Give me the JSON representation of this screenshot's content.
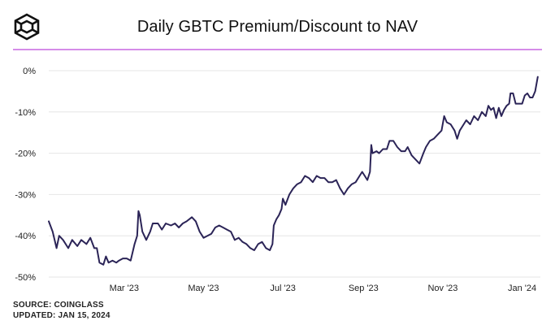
{
  "header": {
    "logo_icon": "cube-logo-icon",
    "title": "Daily GBTC Premium/Discount to NAV"
  },
  "footer": {
    "source": "SOURCE: COINGLASS",
    "updated": "UPDATED: JAN 15, 2024"
  },
  "colors": {
    "line": "#2b2457",
    "accent_rule": "#d58ce8",
    "grid": "#e6e6e6",
    "text": "#111111"
  },
  "chart_data": {
    "type": "line",
    "title": "Daily GBTC Premium/Discount to NAV",
    "xlabel": "",
    "ylabel": "",
    "y_unit": "%",
    "ylim": [
      -50,
      0
    ],
    "yticks": [
      0,
      -10,
      -20,
      -30,
      -40,
      -50
    ],
    "ytick_labels": [
      "0%",
      "-10%",
      "-20%",
      "-30%",
      "-40%",
      "-50%"
    ],
    "xlim": [
      "2023-01-02",
      "2024-01-15"
    ],
    "xticks": [
      "2023-03-01",
      "2023-05-01",
      "2023-07-01",
      "2023-09-01",
      "2023-11-01",
      "2024-01-01"
    ],
    "xtick_labels": [
      "Mar '23",
      "May '23",
      "Jul '23",
      "Sep '23",
      "Nov '23",
      "Jan '24"
    ],
    "grid": true,
    "legend": "none",
    "series": [
      {
        "points": [
          [
            "2023-01-02",
            -36.5
          ],
          [
            "2023-01-05",
            -39
          ],
          [
            "2023-01-08",
            -43
          ],
          [
            "2023-01-10",
            -40
          ],
          [
            "2023-01-13",
            -41
          ],
          [
            "2023-01-17",
            -43
          ],
          [
            "2023-01-20",
            -41
          ],
          [
            "2023-01-24",
            -42.5
          ],
          [
            "2023-01-27",
            -41
          ],
          [
            "2023-01-31",
            -42
          ],
          [
            "2023-02-03",
            -40.5
          ],
          [
            "2023-02-06",
            -43
          ],
          [
            "2023-02-08",
            -43
          ],
          [
            "2023-02-10",
            -46.5
          ],
          [
            "2023-02-13",
            -47
          ],
          [
            "2023-02-15",
            -45
          ],
          [
            "2023-02-17",
            -46.5
          ],
          [
            "2023-02-20",
            -46
          ],
          [
            "2023-02-23",
            -46.5
          ],
          [
            "2023-02-25",
            -46
          ],
          [
            "2023-02-28",
            -45.5
          ],
          [
            "2023-03-03",
            -45.5
          ],
          [
            "2023-03-06",
            -46
          ],
          [
            "2023-03-09",
            -42
          ],
          [
            "2023-03-11",
            -40
          ],
          [
            "2023-03-12",
            -34
          ],
          [
            "2023-03-13",
            -35
          ],
          [
            "2023-03-15",
            -39
          ],
          [
            "2023-03-18",
            -41
          ],
          [
            "2023-03-21",
            -39
          ],
          [
            "2023-03-23",
            -37
          ],
          [
            "2023-03-27",
            -37
          ],
          [
            "2023-03-30",
            -38.5
          ],
          [
            "2023-04-02",
            -37
          ],
          [
            "2023-04-06",
            -37.5
          ],
          [
            "2023-04-09",
            -37
          ],
          [
            "2023-04-12",
            -38
          ],
          [
            "2023-04-15",
            -37
          ],
          [
            "2023-04-18",
            -36.5
          ],
          [
            "2023-04-22",
            -35.5
          ],
          [
            "2023-04-25",
            -36.5
          ],
          [
            "2023-04-28",
            -39
          ],
          [
            "2023-05-01",
            -40.5
          ],
          [
            "2023-05-04",
            -40
          ],
          [
            "2023-05-07",
            -39.5
          ],
          [
            "2023-05-10",
            -38
          ],
          [
            "2023-05-13",
            -37.5
          ],
          [
            "2023-05-16",
            -38
          ],
          [
            "2023-05-19",
            -38.5
          ],
          [
            "2023-05-22",
            -39
          ],
          [
            "2023-05-25",
            -41
          ],
          [
            "2023-05-28",
            -40.5
          ],
          [
            "2023-05-31",
            -41.5
          ],
          [
            "2023-06-03",
            -42
          ],
          [
            "2023-06-06",
            -43
          ],
          [
            "2023-06-09",
            -43.5
          ],
          [
            "2023-06-12",
            -42
          ],
          [
            "2023-06-15",
            -41.5
          ],
          [
            "2023-06-18",
            -43
          ],
          [
            "2023-06-21",
            -43.5
          ],
          [
            "2023-06-23",
            -42
          ],
          [
            "2023-06-24",
            -37.5
          ],
          [
            "2023-06-26",
            -36
          ],
          [
            "2023-06-28",
            -35
          ],
          [
            "2023-06-30",
            -33.5
          ],
          [
            "2023-07-01",
            -31
          ],
          [
            "2023-07-03",
            -32.5
          ],
          [
            "2023-07-06",
            -30
          ],
          [
            "2023-07-09",
            -28.5
          ],
          [
            "2023-07-12",
            -27.5
          ],
          [
            "2023-07-15",
            -27
          ],
          [
            "2023-07-18",
            -25.5
          ],
          [
            "2023-07-21",
            -26
          ],
          [
            "2023-07-24",
            -27
          ],
          [
            "2023-07-27",
            -25.5
          ],
          [
            "2023-07-30",
            -26
          ],
          [
            "2023-08-02",
            -26
          ],
          [
            "2023-08-05",
            -27
          ],
          [
            "2023-08-08",
            -27
          ],
          [
            "2023-08-11",
            -26.5
          ],
          [
            "2023-08-14",
            -28.5
          ],
          [
            "2023-08-17",
            -30
          ],
          [
            "2023-08-20",
            -28.5
          ],
          [
            "2023-08-23",
            -27.5
          ],
          [
            "2023-08-26",
            -27
          ],
          [
            "2023-08-29",
            -25.5
          ],
          [
            "2023-08-31",
            -24.5
          ],
          [
            "2023-09-02",
            -25.5
          ],
          [
            "2023-09-04",
            -26.5
          ],
          [
            "2023-09-06",
            -24.5
          ],
          [
            "2023-09-07",
            -18
          ],
          [
            "2023-09-08",
            -20
          ],
          [
            "2023-09-11",
            -19.5
          ],
          [
            "2023-09-13",
            -20
          ],
          [
            "2023-09-16",
            -19
          ],
          [
            "2023-09-19",
            -19
          ],
          [
            "2023-09-21",
            -17
          ],
          [
            "2023-09-24",
            -17
          ],
          [
            "2023-09-27",
            -18.5
          ],
          [
            "2023-09-30",
            -19.5
          ],
          [
            "2023-10-03",
            -19.5
          ],
          [
            "2023-10-05",
            -18.5
          ],
          [
            "2023-10-08",
            -20.5
          ],
          [
            "2023-10-11",
            -21.5
          ],
          [
            "2023-10-14",
            -22.5
          ],
          [
            "2023-10-17",
            -20
          ],
          [
            "2023-10-19",
            -18.5
          ],
          [
            "2023-10-22",
            -17
          ],
          [
            "2023-10-25",
            -16.5
          ],
          [
            "2023-10-28",
            -15.5
          ],
          [
            "2023-10-31",
            -14.5
          ],
          [
            "2023-11-02",
            -11
          ],
          [
            "2023-11-04",
            -12.5
          ],
          [
            "2023-11-07",
            -13
          ],
          [
            "2023-11-10",
            -14.5
          ],
          [
            "2023-11-12",
            -16.5
          ],
          [
            "2023-11-14",
            -14.5
          ],
          [
            "2023-11-16",
            -13.5
          ],
          [
            "2023-11-19",
            -12
          ],
          [
            "2023-11-22",
            -13
          ],
          [
            "2023-11-25",
            -11
          ],
          [
            "2023-11-28",
            -12
          ],
          [
            "2023-12-01",
            -10
          ],
          [
            "2023-12-04",
            -11
          ],
          [
            "2023-12-06",
            -8.5
          ],
          [
            "2023-12-08",
            -9.5
          ],
          [
            "2023-12-10",
            -9
          ],
          [
            "2023-12-12",
            -11.5
          ],
          [
            "2023-12-14",
            -9
          ],
          [
            "2023-12-16",
            -11
          ],
          [
            "2023-12-18",
            -9.5
          ],
          [
            "2023-12-20",
            -8.5
          ],
          [
            "2023-12-22",
            -8
          ],
          [
            "2023-12-23",
            -5.5
          ],
          [
            "2023-12-25",
            -5.5
          ],
          [
            "2023-12-27",
            -8
          ],
          [
            "2023-12-29",
            -8
          ],
          [
            "2024-01-01",
            -8
          ],
          [
            "2024-01-03",
            -6
          ],
          [
            "2024-01-05",
            -5.5
          ],
          [
            "2024-01-07",
            -6.5
          ],
          [
            "2024-01-09",
            -6.5
          ],
          [
            "2024-01-11",
            -5
          ],
          [
            "2024-01-13",
            -1.5
          ]
        ]
      }
    ]
  }
}
